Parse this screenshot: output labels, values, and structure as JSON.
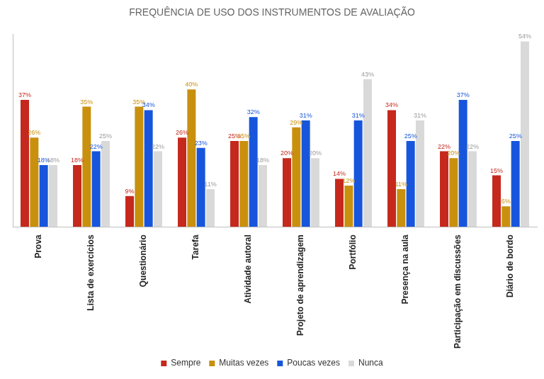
{
  "chart_data": {
    "type": "bar",
    "title": "FREQUÊNCIA DE USO DOS INSTRUMENTOS DE AVALIAÇÃO",
    "categories": [
      "Prova",
      "Lista de exercícios",
      "Questionário",
      "Tarefa",
      "Atividade autoral",
      "Projeto de aprendizagem",
      "Portfólio",
      "Presença na aula",
      "Participação em discussões",
      "Diário de bordo"
    ],
    "series": [
      {
        "name": "Sempre",
        "color": "#c5281c",
        "values": [
          37,
          18,
          9,
          26,
          25,
          20,
          14,
          34,
          22,
          15
        ],
        "value_labels": [
          "37%",
          "18%",
          "9%",
          "26%",
          "25%",
          "20%",
          "14%",
          "34%",
          "22%",
          "15%"
        ]
      },
      {
        "name": "Muitas vezes",
        "color": "#c9900e",
        "values": [
          26,
          35,
          35,
          40,
          25,
          29,
          12,
          11,
          20,
          6
        ],
        "value_labels": [
          "26%",
          "35%",
          "35%",
          "40%",
          "25%",
          "29%",
          "12%",
          "11%",
          "20%",
          "6%"
        ]
      },
      {
        "name": "Poucas vezes",
        "color": "#1756dc",
        "values": [
          18,
          22,
          34,
          23,
          32,
          31,
          31,
          25,
          37,
          25
        ],
        "value_labels": [
          "18%",
          "22%",
          "34%",
          "23%",
          "32%",
          "31%",
          "31%",
          "25%",
          "37%",
          "25%"
        ]
      },
      {
        "name": "Nunca",
        "color": "#d9d9d9",
        "values": [
          18,
          25,
          22,
          11,
          18,
          20,
          43,
          31,
          22,
          54
        ],
        "value_labels": [
          "18%",
          "25%",
          "22%",
          "11%",
          "18%",
          "20%",
          "43%",
          "31%",
          "22%",
          "54%"
        ]
      }
    ],
    "ylim": [
      0,
      56
    ],
    "grid": false,
    "legend": "bottom",
    "data_labels": true,
    "tick_labels": "x"
  }
}
